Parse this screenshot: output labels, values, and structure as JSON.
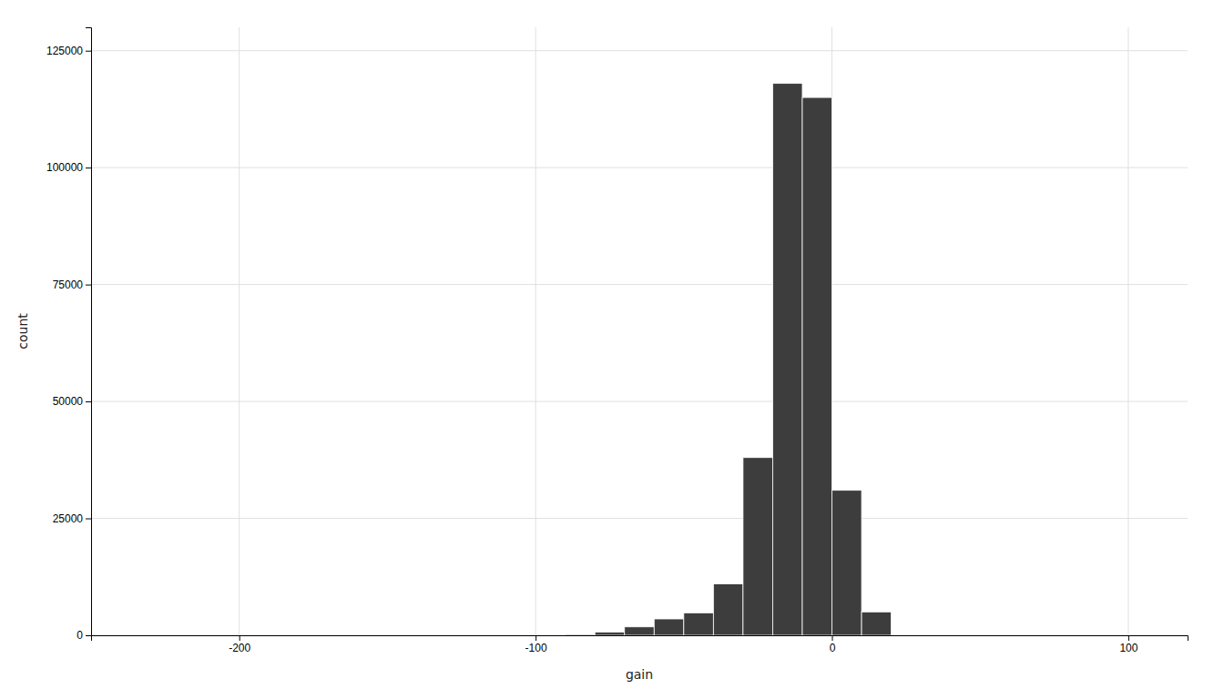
{
  "chart_data": {
    "type": "histogram",
    "xlabel": "gain",
    "ylabel": "count",
    "bins": [
      -90,
      -80,
      -70,
      -60,
      -50,
      -40,
      -30,
      -20,
      -10,
      0,
      10,
      20,
      30,
      40,
      50
    ],
    "values": [
      200,
      700,
      1800,
      3500,
      4800,
      11000,
      38000,
      118000,
      115000,
      31000,
      5000,
      0,
      0,
      0
    ],
    "color": "#3d3d3d",
    "xlim": [
      -250,
      120
    ],
    "ylim": [
      0,
      130000
    ],
    "xticks": [
      -200,
      -100,
      0,
      100
    ],
    "yticks": [
      0,
      25000,
      50000,
      75000,
      100000,
      125000
    ],
    "grid": true
  }
}
